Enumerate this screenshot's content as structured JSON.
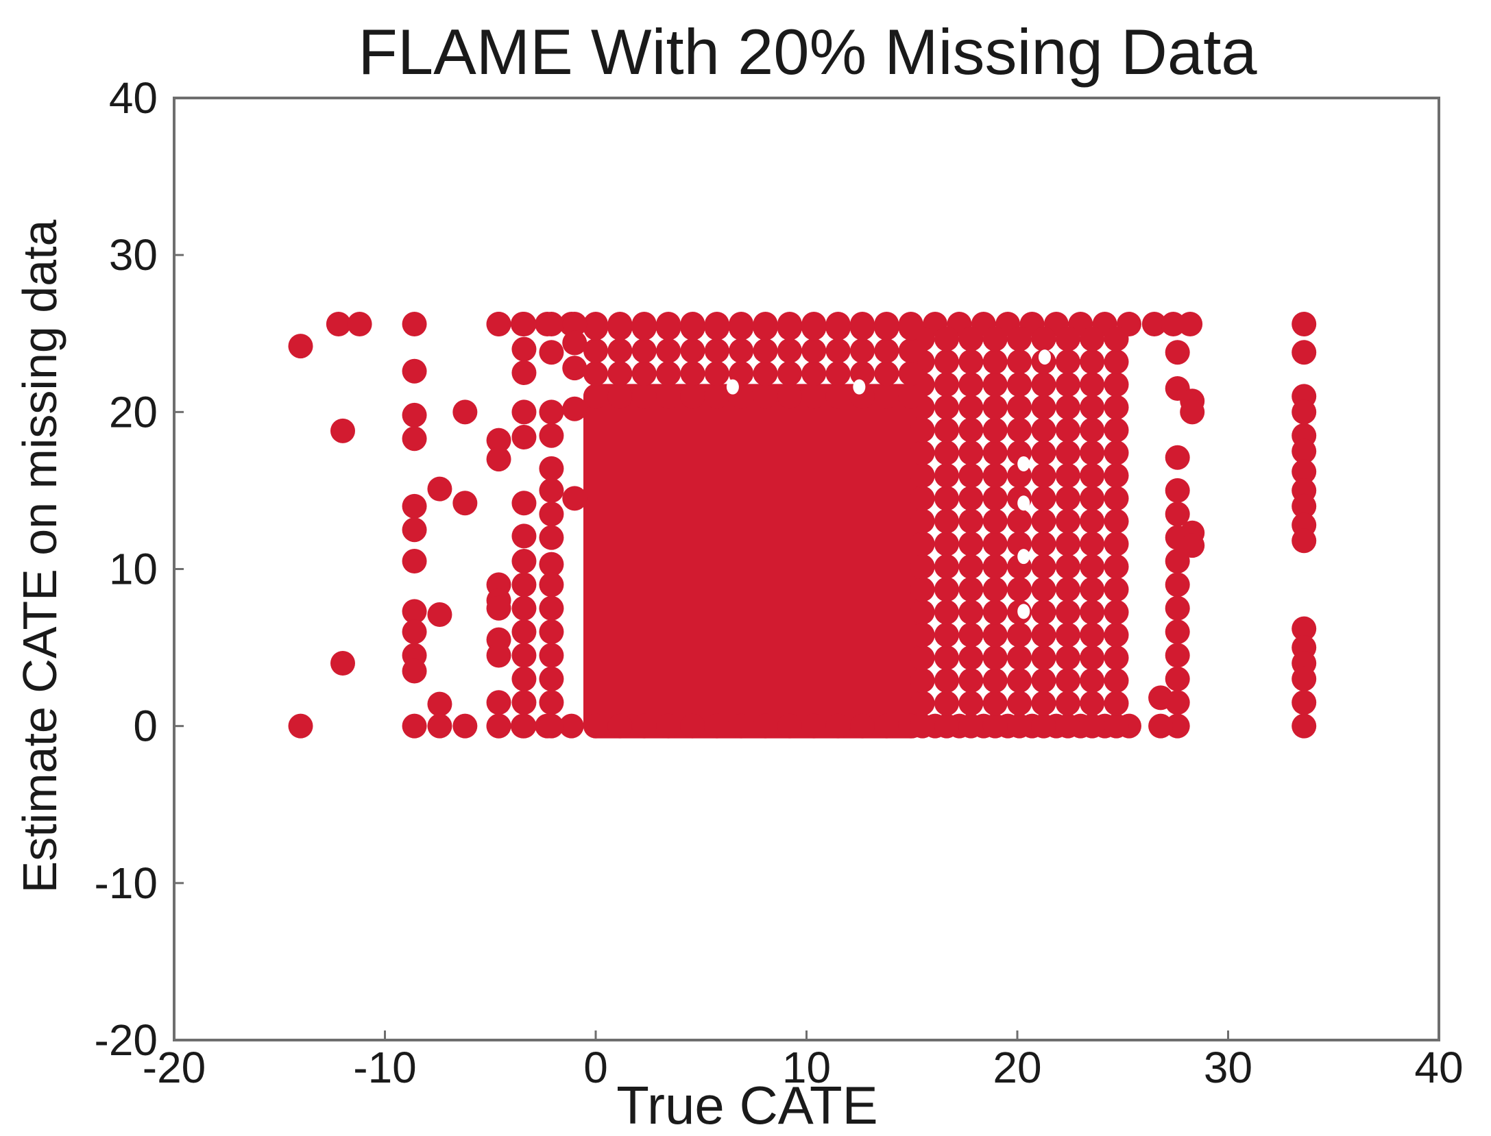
{
  "chart_data": {
    "type": "scatter",
    "title": "FLAME With 20% Missing Data",
    "xlabel": "True CATE",
    "ylabel": "Estimate CATE on missing data",
    "xlim": [
      -20,
      40
    ],
    "ylim": [
      -20,
      40
    ],
    "xticks": [
      "-20",
      "-10",
      "0",
      "10",
      "20",
      "30",
      "40"
    ],
    "yticks": [
      "-20",
      "-10",
      "0",
      "10",
      "20",
      "30",
      "40"
    ],
    "grid": false,
    "legend": "none",
    "marker_color": "#d21b30",
    "dense_region": {
      "x_range": [
        0,
        15
      ],
      "y_range": [
        0,
        21
      ]
    },
    "series": [
      {
        "points": [
          [
            -14,
            24.2
          ],
          [
            -14,
            0
          ],
          [
            -12.2,
            25.6
          ],
          [
            -11.2,
            25.6
          ],
          [
            -12,
            18.8
          ],
          [
            -12,
            4
          ],
          [
            -8.6,
            25.6
          ],
          [
            -8.6,
            22.6
          ],
          [
            -8.6,
            19.8
          ],
          [
            -8.6,
            18.3
          ],
          [
            -8.6,
            14
          ],
          [
            -8.6,
            12.5
          ],
          [
            -8.6,
            10.5
          ],
          [
            -8.6,
            7.3
          ],
          [
            -8.6,
            6
          ],
          [
            -8.6,
            4.5
          ],
          [
            -8.6,
            3.5
          ],
          [
            -8.6,
            0
          ],
          [
            -7.4,
            15.1
          ],
          [
            -7.4,
            7.1
          ],
          [
            -7.4,
            1.4
          ],
          [
            -7.4,
            0
          ],
          [
            -6.2,
            20
          ],
          [
            -6.2,
            14.2
          ],
          [
            -6.2,
            0
          ],
          [
            -4.6,
            25.6
          ],
          [
            -4.6,
            18.2
          ],
          [
            -4.6,
            17
          ],
          [
            -4.6,
            9
          ],
          [
            -4.6,
            8
          ],
          [
            -4.6,
            7.5
          ],
          [
            -4.6,
            5.5
          ],
          [
            -4.6,
            4.5
          ],
          [
            -4.6,
            1.5
          ],
          [
            -4.6,
            0
          ],
          [
            -3.4,
            25.6
          ],
          [
            -3.4,
            24
          ],
          [
            -3.4,
            22.5
          ],
          [
            -3.4,
            20
          ],
          [
            -3.4,
            18.4
          ],
          [
            -3.4,
            14.2
          ],
          [
            -3.4,
            12.1
          ],
          [
            -3.4,
            10.5
          ],
          [
            -3.4,
            9
          ],
          [
            -3.4,
            7.5
          ],
          [
            -3.4,
            6
          ],
          [
            -3.4,
            4.5
          ],
          [
            -3.4,
            3
          ],
          [
            -3.4,
            1.5
          ],
          [
            -3.4,
            0
          ],
          [
            -2.1,
            25.6
          ],
          [
            -2.1,
            23.8
          ],
          [
            -2.1,
            20
          ],
          [
            -2.1,
            18.5
          ],
          [
            -2.1,
            16.4
          ],
          [
            -2.1,
            15
          ],
          [
            -2.1,
            13.5
          ],
          [
            -2.1,
            12
          ],
          [
            -2.1,
            10.3
          ],
          [
            -2.1,
            9
          ],
          [
            -2.1,
            7.5
          ],
          [
            -2.1,
            6
          ],
          [
            -2.1,
            4.5
          ],
          [
            -2.1,
            3
          ],
          [
            -2.1,
            1.5
          ],
          [
            -2.1,
            0
          ],
          [
            -1,
            25.6
          ],
          [
            -1,
            24.4
          ],
          [
            -1,
            22.8
          ],
          [
            -1,
            20.2
          ],
          [
            -1,
            14.5
          ],
          [
            26.5,
            25.6
          ],
          [
            27.4,
            25.6
          ],
          [
            28.2,
            25.6
          ],
          [
            27.6,
            23.8
          ],
          [
            27.6,
            21.5
          ],
          [
            27.6,
            17.1
          ],
          [
            27.6,
            15
          ],
          [
            27.6,
            13.5
          ],
          [
            27.6,
            12
          ],
          [
            27.6,
            10.5
          ],
          [
            27.6,
            9
          ],
          [
            27.6,
            7.5
          ],
          [
            27.6,
            6
          ],
          [
            27.6,
            4.5
          ],
          [
            27.6,
            3
          ],
          [
            27.6,
            1.5
          ],
          [
            27.6,
            0
          ],
          [
            28.3,
            20.7
          ],
          [
            28.3,
            20
          ],
          [
            28.3,
            12.3
          ],
          [
            28.3,
            11.5
          ],
          [
            26.8,
            1.8
          ],
          [
            26.8,
            0
          ],
          [
            33.6,
            25.6
          ],
          [
            33.6,
            23.8
          ],
          [
            33.6,
            21
          ],
          [
            33.6,
            20
          ],
          [
            33.6,
            18.5
          ],
          [
            33.6,
            17.5
          ],
          [
            33.6,
            16.2
          ],
          [
            33.6,
            15
          ],
          [
            33.6,
            14
          ],
          [
            33.6,
            12.8
          ],
          [
            33.6,
            11.8
          ],
          [
            33.6,
            6.2
          ],
          [
            33.6,
            5
          ],
          [
            33.6,
            4
          ],
          [
            33.6,
            3
          ],
          [
            33.6,
            1.5
          ],
          [
            33.6,
            0
          ]
        ]
      }
    ]
  }
}
